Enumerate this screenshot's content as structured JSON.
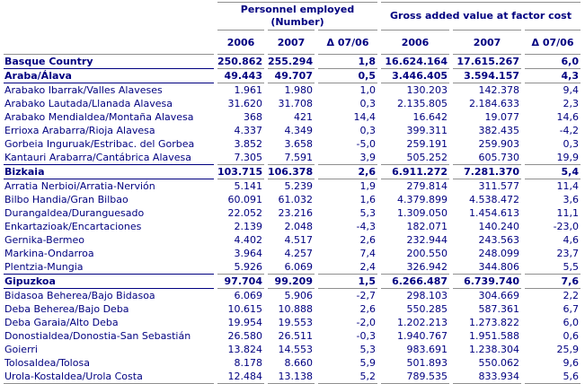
{
  "colors": {
    "text_navy": "#000080",
    "line_gray": "#8f8f8f",
    "line_navy": "#000080",
    "background": "#ffffff"
  },
  "chart_data": {
    "type": "table",
    "column_groups": [
      {
        "label_line1": "Personnel employed",
        "label_line2": "(Number)",
        "span": 3
      },
      {
        "label_line1": "Gross added value at factor cost",
        "label_line2": "",
        "span": 3
      }
    ],
    "columns": [
      "2006",
      "2007",
      "Δ 07/06",
      "2006",
      "2007",
      "Δ 07/06"
    ],
    "rows": [
      {
        "label": "Basque Country",
        "values": [
          "250.862",
          "255.294",
          "1,8",
          "16.624.164",
          "17.615.267",
          "6,0"
        ],
        "bold": true,
        "sep": "navy"
      },
      {
        "label": "Araba/Álava",
        "values": [
          "49.443",
          "49.707",
          "0,5",
          "3.446.405",
          "3.594.157",
          "4,3"
        ],
        "bold": true,
        "sep": "navy"
      },
      {
        "label": "Arabako Ibarrak/Valles Alaveses",
        "values": [
          "1.961",
          "1.980",
          "1,0",
          "130.203",
          "142.378",
          "9,4"
        ],
        "bold": false,
        "sep": ""
      },
      {
        "label": "Arabako Lautada/Llanada Alavesa",
        "values": [
          "31.620",
          "31.708",
          "0,3",
          "2.135.805",
          "2.184.633",
          "2,3"
        ],
        "bold": false,
        "sep": ""
      },
      {
        "label": "Arabako Mendialdea/Montaña Alavesa",
        "values": [
          "368",
          "421",
          "14,4",
          "16.642",
          "19.077",
          "14,6"
        ],
        "bold": false,
        "sep": ""
      },
      {
        "label": "Errioxa Arabarra/Rioja Alavesa",
        "values": [
          "4.337",
          "4.349",
          "0,3",
          "399.311",
          "382.435",
          "-4,2"
        ],
        "bold": false,
        "sep": ""
      },
      {
        "label": "Gorbeia Inguruak/Estribac. del Gorbea",
        "values": [
          "3.852",
          "3.658",
          "-5,0",
          "259.191",
          "259.903",
          "0,3"
        ],
        "bold": false,
        "sep": ""
      },
      {
        "label": "Kantauri Arabarra/Cantábrica Alavesa",
        "values": [
          "7.305",
          "7.591",
          "3,9",
          "505.252",
          "605.730",
          "19,9"
        ],
        "bold": false,
        "sep": "navy"
      },
      {
        "label": "Bizkaia",
        "values": [
          "103.715",
          "106.378",
          "2,6",
          "6.911.272",
          "7.281.370",
          "5,4"
        ],
        "bold": true,
        "sep": "navy"
      },
      {
        "label": "Arratia Nerbioi/Arratia-Nervión",
        "values": [
          "5.141",
          "5.239",
          "1,9",
          "279.814",
          "311.577",
          "11,4"
        ],
        "bold": false,
        "sep": ""
      },
      {
        "label": "Bilbo Handia/Gran Bilbao",
        "values": [
          "60.091",
          "61.032",
          "1,6",
          "4.379.899",
          "4.538.472",
          "3,6"
        ],
        "bold": false,
        "sep": ""
      },
      {
        "label": "Durangaldea/Duranguesado",
        "values": [
          "22.052",
          "23.216",
          "5,3",
          "1.309.050",
          "1.454.613",
          "11,1"
        ],
        "bold": false,
        "sep": ""
      },
      {
        "label": "Enkartazioak/Encartaciones",
        "values": [
          "2.139",
          "2.048",
          "-4,3",
          "182.071",
          "140.240",
          "-23,0"
        ],
        "bold": false,
        "sep": ""
      },
      {
        "label": "Gernika-Bermeo",
        "values": [
          "4.402",
          "4.517",
          "2,6",
          "232.944",
          "243.563",
          "4,6"
        ],
        "bold": false,
        "sep": ""
      },
      {
        "label": "Markina-Ondarroa",
        "values": [
          "3.964",
          "4.257",
          "7,4",
          "200.550",
          "248.099",
          "23,7"
        ],
        "bold": false,
        "sep": ""
      },
      {
        "label": "Plentzia-Mungia",
        "values": [
          "5.926",
          "6.069",
          "2,4",
          "326.942",
          "344.806",
          "5,5"
        ],
        "bold": false,
        "sep": "navy"
      },
      {
        "label": "Gipuzkoa",
        "values": [
          "97.704",
          "99.209",
          "1,5",
          "6.266.487",
          "6.739.740",
          "7,6"
        ],
        "bold": true,
        "sep": "navy"
      },
      {
        "label": "Bidasoa Beherea/Bajo Bidasoa",
        "values": [
          "6.069",
          "5.906",
          "-2,7",
          "298.103",
          "304.669",
          "2,2"
        ],
        "bold": false,
        "sep": ""
      },
      {
        "label": "Deba Beherea/Bajo Deba",
        "values": [
          "10.615",
          "10.888",
          "2,6",
          "550.285",
          "587.361",
          "6,7"
        ],
        "bold": false,
        "sep": ""
      },
      {
        "label": "Deba Garaia/Alto Deba",
        "values": [
          "19.954",
          "19.553",
          "-2,0",
          "1.202.213",
          "1.273.822",
          "6,0"
        ],
        "bold": false,
        "sep": ""
      },
      {
        "label": "Donostialdea/Donostia-San Sebastián",
        "values": [
          "26.580",
          "26.511",
          "-0,3",
          "1.940.767",
          "1.951.588",
          "0,6"
        ],
        "bold": false,
        "sep": ""
      },
      {
        "label": "Goierri",
        "values": [
          "13.824",
          "14.553",
          "5,3",
          "983.691",
          "1.238.304",
          "25,9"
        ],
        "bold": false,
        "sep": ""
      },
      {
        "label": "Tolosaldea/Tolosa",
        "values": [
          "8.178",
          "8.660",
          "5,9",
          "501.893",
          "550.062",
          "9,6"
        ],
        "bold": false,
        "sep": ""
      },
      {
        "label": "Urola-Kostaldea/Urola Costa",
        "values": [
          "12.484",
          "13.138",
          "5,2",
          "789.535",
          "833.934",
          "5,6"
        ],
        "bold": false,
        "sep": "gray"
      }
    ]
  }
}
